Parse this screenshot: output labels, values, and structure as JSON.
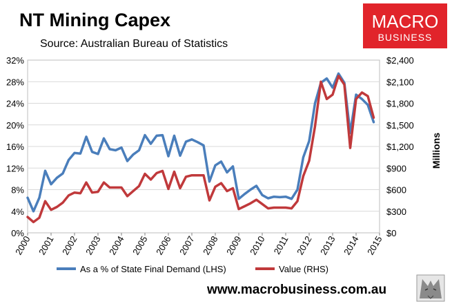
{
  "header": {
    "title": "NT Mining Capex",
    "subtitle": "Source: Australian Bureau of Statistics"
  },
  "logo": {
    "line1": "MACRO",
    "line2": "BUSINESS",
    "bg_color": "#e1242b"
  },
  "footer": {
    "website": "www.macrobusiness.com.au"
  },
  "chart_data": {
    "type": "line",
    "title": "NT Mining Capex",
    "subtitle": "Source: Australian Bureau of Statistics",
    "xlabel": "",
    "ylabel_left": "",
    "ylabel_right": "Millions",
    "xlim": [
      2000,
      2015
    ],
    "x_ticks": [
      "2000",
      "2001",
      "2002",
      "2003",
      "2004",
      "2005",
      "2006",
      "2007",
      "2008",
      "2009",
      "2010",
      "2011",
      "2012",
      "2013",
      "2014",
      "2015"
    ],
    "y_left": {
      "min": 0,
      "max": 32,
      "ticks": [
        "0%",
        "4%",
        "8%",
        "12%",
        "16%",
        "20%",
        "24%",
        "28%",
        "32%"
      ]
    },
    "y_right": {
      "min": 0,
      "max": 2400,
      "ticks": [
        "$0",
        "$300",
        "$600",
        "$900",
        "$1,200",
        "$1,500",
        "$1,800",
        "$2,100",
        "$2,400"
      ]
    },
    "grid": "horizontal",
    "legend_position": "bottom",
    "series": [
      {
        "name": "As a % of State Final Demand (LHS)",
        "axis": "left",
        "color": "#4a7ebb",
        "x": [
          2000,
          2000.25,
          2000.5,
          2000.75,
          2001,
          2001.25,
          2001.5,
          2001.75,
          2002,
          2002.25,
          2002.5,
          2002.75,
          2003,
          2003.25,
          2003.5,
          2003.75,
          2004,
          2004.25,
          2004.5,
          2004.75,
          2005,
          2005.25,
          2005.5,
          2005.75,
          2006,
          2006.25,
          2006.5,
          2006.75,
          2007,
          2007.25,
          2007.5,
          2007.75,
          2008,
          2008.25,
          2008.5,
          2008.75,
          2009,
          2009.25,
          2009.5,
          2009.75,
          2010,
          2010.25,
          2010.5,
          2010.75,
          2011,
          2011.25,
          2011.5,
          2011.75,
          2012,
          2012.25,
          2012.5,
          2012.75,
          2013,
          2013.25,
          2013.5,
          2013.75,
          2014,
          2014.25,
          2014.5,
          2014.75
        ],
        "y": [
          6.5,
          4.0,
          6.5,
          11.5,
          9.0,
          10.2,
          11.0,
          13.5,
          14.8,
          14.7,
          17.8,
          15.0,
          14.6,
          17.5,
          15.5,
          15.3,
          15.8,
          13.3,
          14.5,
          15.3,
          18.1,
          16.5,
          18.0,
          18.1,
          14.2,
          18.0,
          14.3,
          16.9,
          17.3,
          16.8,
          16.2,
          9.5,
          12.5,
          13.2,
          11.2,
          12.3,
          6.3,
          7.2,
          8.0,
          8.7,
          7.0,
          6.4,
          6.7,
          6.6,
          6.7,
          6.3,
          8.0,
          14.0,
          17.0,
          24.0,
          27.8,
          28.6,
          26.9,
          29.5,
          27.8,
          18.5,
          25.6,
          24.8,
          23.7,
          20.5
        ]
      },
      {
        "name": "Value (RHS)",
        "axis": "right",
        "color": "#c0393b",
        "x": [
          2000,
          2000.25,
          2000.5,
          2000.75,
          2001,
          2001.25,
          2001.5,
          2001.75,
          2002,
          2002.25,
          2002.5,
          2002.75,
          2003,
          2003.25,
          2003.5,
          2003.75,
          2004,
          2004.25,
          2004.5,
          2004.75,
          2005,
          2005.25,
          2005.5,
          2005.75,
          2006,
          2006.25,
          2006.5,
          2006.75,
          2007,
          2007.25,
          2007.5,
          2007.75,
          2008,
          2008.25,
          2008.5,
          2008.75,
          2009,
          2009.25,
          2009.5,
          2009.75,
          2010,
          2010.25,
          2010.5,
          2010.75,
          2011,
          2011.25,
          2011.5,
          2011.75,
          2012,
          2012.25,
          2012.5,
          2012.75,
          2013,
          2013.25,
          2013.5,
          2013.75,
          2014,
          2014.25,
          2014.5,
          2014.75
        ],
        "y": [
          220,
          150,
          210,
          440,
          320,
          360,
          420,
          520,
          560,
          550,
          700,
          560,
          570,
          700,
          630,
          630,
          630,
          510,
          580,
          650,
          820,
          740,
          830,
          860,
          610,
          850,
          620,
          780,
          800,
          800,
          800,
          450,
          640,
          690,
          580,
          620,
          330,
          370,
          410,
          460,
          400,
          340,
          350,
          350,
          350,
          340,
          440,
          790,
          1000,
          1480,
          2100,
          1860,
          1920,
          2180,
          2060,
          1180,
          1860,
          1950,
          1900,
          1600
        ]
      }
    ]
  }
}
